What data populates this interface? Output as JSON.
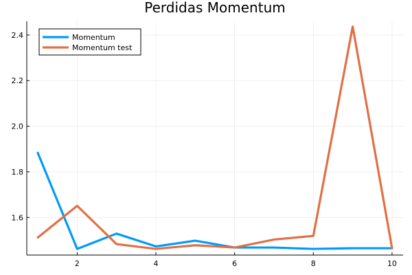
{
  "chart_data": {
    "type": "line",
    "title": "Perdidas Momentum",
    "xlabel": "",
    "ylabel": "",
    "x": [
      1,
      2,
      3,
      4,
      5,
      6,
      7,
      8,
      9,
      10
    ],
    "series": [
      {
        "name": "Momentum",
        "color": "#009AF9",
        "values": [
          1.883,
          1.462,
          1.529,
          1.473,
          1.498,
          1.468,
          1.468,
          1.462,
          1.465,
          1.465
        ]
      },
      {
        "name": "Momentum test",
        "color": "#E26F46",
        "values": [
          1.512,
          1.651,
          1.483,
          1.462,
          1.478,
          1.468,
          1.503,
          1.519,
          2.437,
          1.465
        ]
      }
    ],
    "xlim": [
      0.72,
      10.28
    ],
    "ylim": [
      1.435,
      2.46
    ],
    "x_ticks": [
      2,
      4,
      6,
      8,
      10
    ],
    "y_ticks": [
      1.6,
      1.8,
      2.0,
      2.2,
      2.4
    ],
    "y_tick_labels": [
      "1.6",
      "1.8",
      "2.0",
      "2.2",
      "2.4"
    ],
    "grid": true,
    "legend_position": "top-left"
  }
}
